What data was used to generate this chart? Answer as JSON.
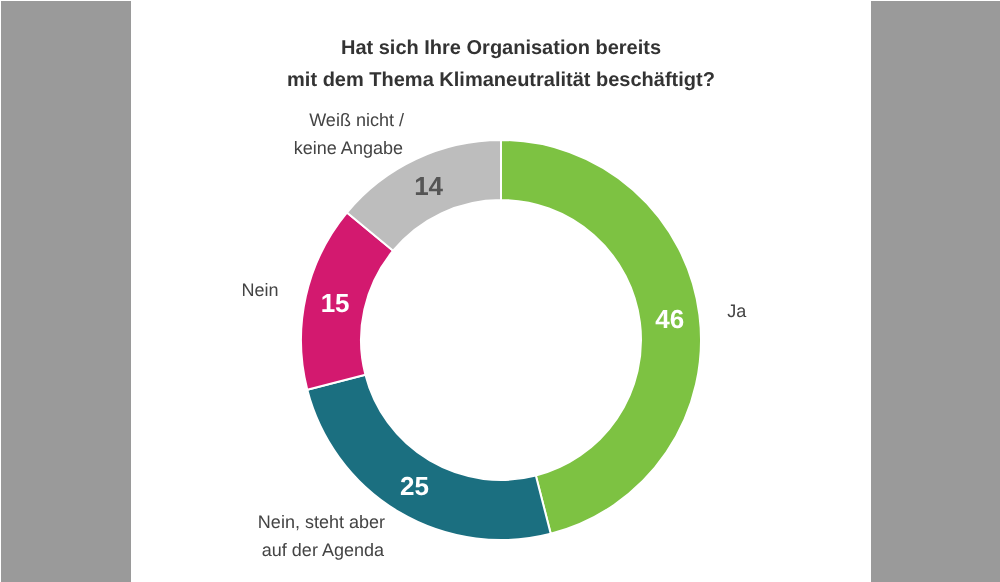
{
  "chart_data": {
    "type": "donut",
    "title": "Hat sich Ihre Organisation bereits\nmit dem Thema Klimaneutralität beschäftigt?",
    "categories": [
      "Ja",
      "Nein, steht aber\nauf der Agenda",
      "Nein",
      "Weiß nicht /\nkeine Angabe"
    ],
    "values": [
      46,
      25,
      15,
      14
    ],
    "colors": [
      "#7dc242",
      "#1b6f80",
      "#d3196f",
      "#bdbdbd"
    ],
    "data_labels": true
  }
}
